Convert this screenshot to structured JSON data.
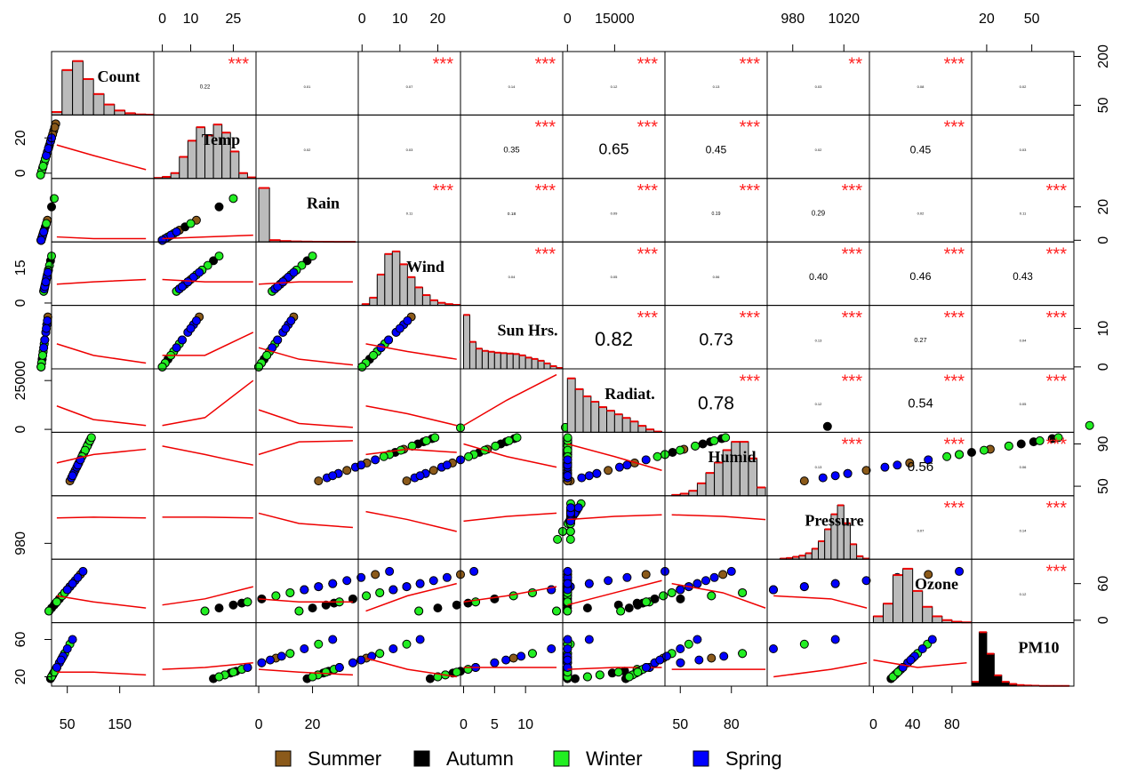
{
  "chart_data": {
    "type": "scatter-matrix",
    "seasons": [
      {
        "name": "Summer",
        "color": "#8b5a1a"
      },
      {
        "name": "Autumn",
        "color": "#000000"
      },
      {
        "name": "Winter",
        "color": "#22ee22"
      },
      {
        "name": "Spring",
        "color": "#0000ff"
      }
    ],
    "variables": [
      {
        "name": "Count",
        "lim": [
          20,
          215
        ],
        "xticks": [
          50,
          150
        ],
        "yticks": [
          50,
          200
        ],
        "smooth_at": [
          30,
          100,
          200
        ],
        "bins": [
          20,
          40,
          60,
          80,
          100,
          120,
          140,
          160,
          180,
          200,
          215
        ],
        "counts": [
          10,
          150,
          180,
          120,
          70,
          35,
          15,
          6,
          2,
          1
        ]
      },
      {
        "name": "Temp",
        "lim": [
          -3,
          33
        ],
        "xticks": [
          0,
          10,
          25
        ],
        "yticks": [
          0,
          20
        ],
        "smooth_at": [
          0,
          15,
          32
        ],
        "bins": [
          -3,
          0,
          3,
          6,
          9,
          12,
          15,
          18,
          21,
          24,
          27,
          30,
          33
        ],
        "counts": [
          1,
          3,
          10,
          40,
          70,
          95,
          80,
          100,
          85,
          50,
          10,
          2
        ]
      },
      {
        "name": "Rain",
        "lim": [
          -1,
          37
        ],
        "xticks": [
          0,
          20
        ],
        "yticks": [
          0,
          20
        ],
        "smooth_at": [
          0,
          15,
          35
        ],
        "bins": [
          0,
          4,
          8,
          12,
          16,
          20,
          24,
          28,
          32,
          36
        ],
        "counts": [
          900,
          30,
          15,
          8,
          5,
          3,
          2,
          1,
          1
        ]
      },
      {
        "name": "Wind",
        "lim": [
          -1,
          26
        ],
        "xticks": [
          0,
          10,
          20
        ],
        "yticks": [
          0,
          15
        ],
        "smooth_at": [
          1,
          12,
          25
        ],
        "bins": [
          0,
          2,
          4,
          6,
          8,
          10,
          12,
          14,
          16,
          18,
          20,
          22,
          24,
          26
        ],
        "counts": [
          5,
          30,
          120,
          200,
          210,
          160,
          110,
          70,
          40,
          20,
          10,
          5,
          2
        ]
      },
      {
        "name": "Sun Hrs.",
        "lim": [
          -0.5,
          16
        ],
        "xticks": [
          0,
          5,
          10
        ],
        "yticks": [
          0,
          10
        ],
        "smooth_at": [
          0,
          7,
          15
        ],
        "bins": [
          0,
          1,
          2,
          3,
          4,
          5,
          6,
          7,
          8,
          9,
          10,
          11,
          12,
          13,
          14,
          15,
          16
        ],
        "counts": [
          120,
          60,
          45,
          40,
          38,
          36,
          35,
          34,
          33,
          30,
          25,
          22,
          18,
          12,
          6,
          2
        ]
      },
      {
        "name": "Radiat.",
        "lim": [
          -1500,
          31000
        ],
        "xticks": [
          0,
          15000
        ],
        "yticks": [
          0,
          25000
        ],
        "smooth_at": [
          0,
          15000,
          30000
        ],
        "bins": [
          0,
          2500,
          5000,
          7500,
          10000,
          12500,
          15000,
          17500,
          20000,
          22500,
          25000,
          27500,
          30000
        ],
        "counts": [
          150,
          120,
          100,
          85,
          70,
          60,
          50,
          40,
          30,
          18,
          8,
          2
        ]
      },
      {
        "name": "Humid",
        "lim": [
          41,
          101
        ],
        "xticks": [
          50,
          80
        ],
        "yticks": [
          50,
          90
        ],
        "smooth_at": [
          45,
          75,
          100
        ],
        "bins": [
          45,
          50,
          55,
          60,
          65,
          70,
          75,
          80,
          85,
          90,
          95,
          100
        ],
        "counts": [
          2,
          5,
          12,
          30,
          55,
          80,
          110,
          130,
          130,
          90,
          20
        ]
      },
      {
        "name": "Pressure",
        "lim": [
          960,
          1040
        ],
        "xticks": [
          980,
          1020
        ],
        "yticks": [
          980
        ],
        "smooth_at": [
          965,
          1010,
          1038
        ],
        "bins": [
          970,
          975,
          980,
          985,
          990,
          995,
          1000,
          1005,
          1010,
          1015,
          1020,
          1025,
          1030,
          1035,
          1040
        ],
        "counts": [
          2,
          4,
          8,
          12,
          20,
          35,
          60,
          100,
          150,
          180,
          120,
          50,
          10,
          2
        ]
      },
      {
        "name": "Ozone",
        "lim": [
          -4,
          100
        ],
        "xticks": [
          0,
          40,
          80
        ],
        "yticks": [
          0,
          60
        ],
        "smooth_at": [
          0,
          45,
          95
        ],
        "bins": [
          0,
          10,
          20,
          30,
          40,
          50,
          60,
          70,
          80,
          90,
          100
        ],
        "counts": [
          20,
          60,
          150,
          170,
          100,
          50,
          20,
          8,
          3,
          1
        ]
      },
      {
        "name": "PM10",
        "lim": [
          10,
          78
        ],
        "xticks": [
          20,
          50
        ],
        "yticks": [
          20,
          60
        ],
        "smooth_at": [
          15,
          45,
          75
        ],
        "bins": [
          10,
          15,
          20,
          25,
          30,
          35,
          40,
          45,
          50,
          55,
          60,
          65,
          70,
          75
        ],
        "counts": [
          20,
          250,
          150,
          50,
          20,
          10,
          5,
          3,
          2,
          1,
          1,
          1,
          1
        ]
      }
    ],
    "observations": [
      {
        "season": 0,
        "values": [
          90,
          24,
          0,
          7,
          11,
          25000,
          62,
          1018,
          60,
          30
        ]
      },
      {
        "season": 0,
        "values": [
          120,
          28,
          1,
          5,
          13,
          28000,
          55,
          1020,
          75,
          35
        ]
      },
      {
        "season": 0,
        "values": [
          70,
          20,
          6,
          10,
          4,
          12000,
          80,
          1008,
          40,
          22
        ]
      },
      {
        "season": 0,
        "values": [
          150,
          22,
          0,
          9,
          9,
          20000,
          65,
          1015,
          55,
          28
        ]
      },
      {
        "season": 0,
        "values": [
          60,
          26,
          12,
          12,
          2,
          8000,
          85,
          1005,
          45,
          20
        ]
      },
      {
        "season": 0,
        "values": [
          100,
          18,
          3,
          6,
          7,
          17000,
          72,
          1012,
          50,
          40
        ]
      },
      {
        "season": 1,
        "values": [
          75,
          14,
          5,
          11,
          3,
          7000,
          88,
          1010,
          25,
          24
        ]
      },
      {
        "season": 1,
        "values": [
          50,
          10,
          2,
          8,
          1,
          3000,
          92,
          1014,
          15,
          30
        ]
      },
      {
        "season": 1,
        "values": [
          95,
          16,
          0,
          14,
          5,
          10000,
          82,
          1018,
          30,
          20
        ]
      },
      {
        "season": 1,
        "values": [
          65,
          8,
          20,
          18,
          0,
          1500,
          95,
          995,
          20,
          18
        ]
      },
      {
        "season": 1,
        "values": [
          110,
          12,
          1,
          6,
          6,
          9000,
          80,
          1020,
          35,
          45
        ]
      },
      {
        "season": 1,
        "values": [
          40,
          18,
          8,
          9,
          2,
          5000,
          90,
          1006,
          28,
          26
        ]
      },
      {
        "season": 2,
        "values": [
          45,
          3,
          4,
          12,
          1,
          2000,
          88,
          1005,
          40,
          28
        ]
      },
      {
        "season": 2,
        "values": [
          60,
          6,
          0,
          9,
          4,
          5000,
          80,
          1022,
          30,
          45
        ]
      },
      {
        "season": 2,
        "values": [
          35,
          1,
          10,
          16,
          0,
          1000,
          93,
          995,
          50,
          22
        ]
      },
      {
        "season": 2,
        "values": [
          80,
          8,
          2,
          20,
          3,
          4000,
          84,
          1012,
          55,
          20
        ]
      },
      {
        "season": 2,
        "values": [
          55,
          -1,
          0,
          5,
          6,
          7000,
          78,
          1030,
          15,
          55
        ]
      },
      {
        "season": 2,
        "values": [
          40,
          4,
          25,
          14,
          0,
          800,
          96,
          985,
          45,
          25
        ]
      },
      {
        "season": 3,
        "values": [
          110,
          15,
          0,
          8,
          11,
          22000,
          62,
          1016,
          65,
          42
        ]
      },
      {
        "season": 3,
        "values": [
          140,
          12,
          1,
          6,
          9,
          18000,
          68,
          1020,
          55,
          60
        ]
      },
      {
        "season": 3,
        "values": [
          85,
          18,
          3,
          11,
          7,
          15000,
          70,
          1010,
          70,
          35
        ]
      },
      {
        "season": 3,
        "values": [
          125,
          10,
          0,
          13,
          12,
          25000,
          58,
          1018,
          80,
          30
        ]
      },
      {
        "season": 3,
        "values": [
          95,
          20,
          5,
          7,
          5,
          12000,
          75,
          1008,
          50,
          38
        ]
      },
      {
        "season": 3,
        "values": [
          160,
          14,
          0,
          9,
          10,
          20000,
          60,
          1025,
          60,
          50
        ]
      }
    ],
    "lower": [
      [
        [
          16,
          10,
          2
        ]
      ],
      [
        [
          2,
          1,
          1
        ],
        [
          1,
          2,
          3
        ]
      ],
      [
        [
          8,
          9,
          10
        ],
        [
          10,
          9,
          9
        ],
        [
          8,
          9,
          9
        ]
      ],
      [
        [
          6,
          3,
          1
        ],
        [
          3,
          3,
          9
        ],
        [
          5,
          2,
          0.5
        ],
        [
          6,
          4,
          2
        ]
      ],
      [
        [
          12000,
          5000,
          2000
        ],
        [
          2000,
          6000,
          25000
        ],
        [
          10000,
          3000,
          1000
        ],
        [
          12000,
          8000,
          2000
        ],
        [
          2000,
          15000,
          28000
        ]
      ],
      [
        [
          72,
          80,
          85
        ],
        [
          88,
          80,
          70
        ],
        [
          80,
          92,
          93
        ],
        [
          80,
          85,
          82
        ],
        [
          90,
          78,
          68
        ],
        [
          90,
          78,
          65
        ]
      ],
      [
        [
          1012,
          1013,
          1012
        ],
        [
          1013,
          1013,
          1012
        ],
        [
          1018,
          1005,
          1000
        ],
        [
          1020,
          1010,
          995
        ],
        [
          1008,
          1014,
          1018
        ],
        [
          1010,
          1014,
          1016
        ],
        [
          1016,
          1014,
          1010
        ]
      ],
      [
        [
          40,
          30,
          20
        ],
        [
          25,
          35,
          55
        ],
        [
          35,
          30,
          30
        ],
        [
          15,
          40,
          60
        ],
        [
          30,
          40,
          55
        ],
        [
          25,
          45,
          65
        ],
        [
          60,
          45,
          20
        ],
        [
          40,
          35,
          20
        ]
      ],
      [
        [
          25,
          25,
          22
        ],
        [
          28,
          30,
          35
        ],
        [
          28,
          25,
          22
        ],
        [
          40,
          28,
          20
        ],
        [
          30,
          30,
          30
        ],
        [
          28,
          30,
          30
        ],
        [
          28,
          28,
          28
        ],
        [
          20,
          28,
          35
        ],
        [
          38,
          30,
          35
        ]
      ]
    ],
    "upper": [
      [
        {
          "r": 0.22,
          "stars": "***"
        },
        {
          "r": 0.01
        },
        {
          "r": 0.07,
          "stars": "***"
        },
        {
          "r": 0.14,
          "stars": "***"
        },
        {
          "r": 0.12,
          "stars": "***"
        },
        {
          "r": 0.13,
          "stars": "***"
        },
        {
          "r": 0.03,
          "stars": "**"
        },
        {
          "r": 0.08,
          "stars": "***"
        },
        {
          "r": 0.02
        }
      ],
      [
        {
          "r": 0.02
        },
        {
          "r": 0.03
        },
        {
          "r": 0.35,
          "stars": "***"
        },
        {
          "r": 0.65,
          "stars": "***"
        },
        {
          "r": 0.45,
          "stars": "***"
        },
        {
          "r": 0.02
        },
        {
          "r": 0.45,
          "stars": "***"
        },
        {
          "r": 0.03
        }
      ],
      [
        {
          "r": 0.11,
          "stars": "***"
        },
        {
          "r": 0.18,
          "stars": "***"
        },
        {
          "r": 0.09,
          "stars": "***"
        },
        {
          "r": 0.19,
          "stars": "***"
        },
        {
          "r": 0.29,
          "stars": "***"
        },
        {
          "r": 0.02
        },
        {
          "r": 0.11,
          "stars": "***"
        }
      ],
      [
        {
          "r": 0.04,
          "stars": "***"
        },
        {
          "r": 0.05,
          "stars": "***"
        },
        {
          "r": 0.06
        },
        {
          "r": {
            "value": 0.4,
            "label": "0.40"
          },
          "stars": "***"
        },
        {
          "r": 0.46,
          "stars": "***"
        },
        {
          "r": 0.43,
          "stars": "***"
        }
      ],
      [
        {
          "r": 0.82,
          "stars": "***"
        },
        {
          "r": 0.73,
          "stars": "***"
        },
        {
          "r": 0.13,
          "stars": "***"
        },
        {
          "r": 0.27,
          "stars": "***"
        },
        {
          "r": 0.04,
          "stars": "***"
        }
      ],
      [
        {
          "r": 0.78,
          "stars": "***"
        },
        {
          "r": 0.12,
          "stars": "***"
        },
        {
          "r": 0.54,
          "stars": "***"
        },
        {
          "r": 0.05,
          "stars": "***"
        }
      ],
      [
        {
          "r": 0.13,
          "stars": "***"
        },
        {
          "r": 0.56,
          "stars": "***"
        },
        {
          "r": 0.06,
          "stars": "***"
        }
      ],
      [
        {
          "r": 0.07,
          "stars": "***"
        },
        {
          "r": 0.14,
          "stars": "***"
        }
      ],
      [
        {
          "r": 0.12,
          "stars": "***"
        }
      ]
    ]
  }
}
